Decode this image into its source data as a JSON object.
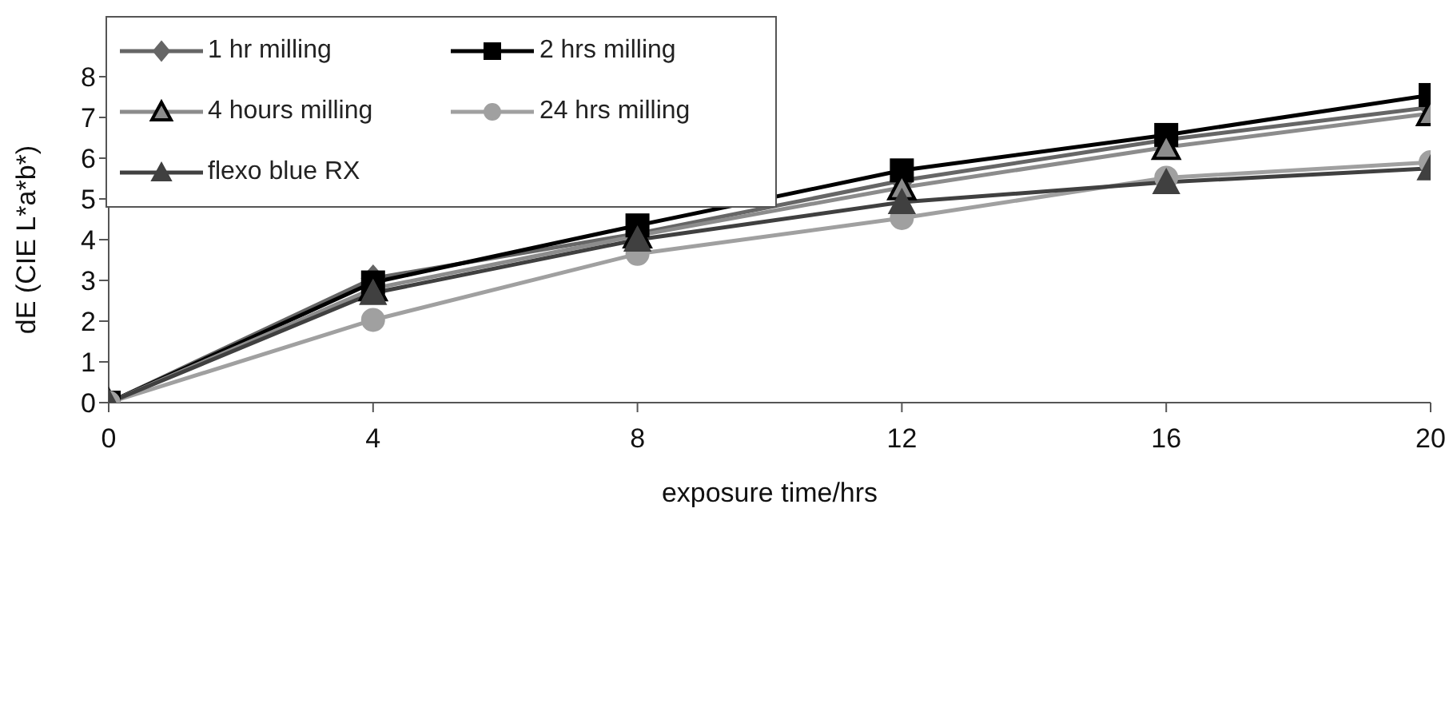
{
  "chart_data": {
    "type": "line",
    "xlabel": "exposure time/hrs",
    "ylabel": "dE (CIE L*a*b*)",
    "x": [
      0,
      4,
      8,
      12,
      16,
      20
    ],
    "xlim": [
      0,
      20
    ],
    "xticks": [
      0,
      4,
      8,
      12,
      16,
      20
    ],
    "ylim": [
      0,
      8
    ],
    "yticks": [
      0,
      1,
      2,
      3,
      4,
      5,
      6,
      7,
      8
    ],
    "grid": false,
    "legend": "top left",
    "series": [
      {
        "name": "1 hr milling",
        "color": "#666666",
        "marker": "diamond",
        "values": [
          0,
          3.05,
          4.15,
          5.45,
          6.45,
          7.25
        ]
      },
      {
        "name": "2 hrs milling",
        "color": "#000000",
        "marker": "square",
        "values": [
          0,
          2.95,
          4.35,
          5.7,
          6.57,
          7.55
        ]
      },
      {
        "name": "4 hours milling",
        "color": "#8c8c8c",
        "marker": "triangle",
        "values": [
          0,
          2.8,
          4.1,
          5.28,
          6.27,
          7.1
        ]
      },
      {
        "name": "24 hrs milling",
        "color": "#a0a0a0",
        "marker": "circle",
        "values": [
          0,
          2.03,
          3.65,
          4.53,
          5.52,
          5.9
        ]
      },
      {
        "name": "flexo blue RX",
        "color": "#404040",
        "marker": "triangle",
        "values": [
          0,
          2.69,
          4.0,
          4.92,
          5.41,
          5.75
        ]
      }
    ]
  }
}
